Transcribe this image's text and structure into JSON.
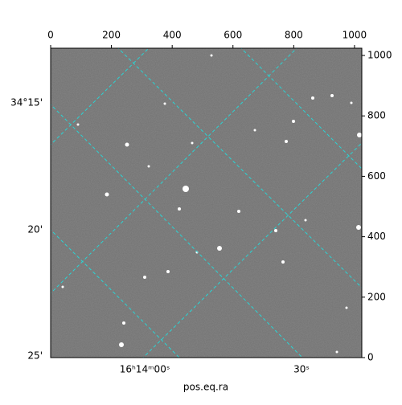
{
  "chart_data": {
    "type": "image",
    "xlabel": "pos.eq.ra",
    "xlim": [
      0,
      1024
    ],
    "ylim": [
      0,
      1024
    ],
    "xticks": [
      0,
      200,
      400,
      600,
      800,
      1000
    ],
    "yticks": [
      0,
      200,
      400,
      600,
      800,
      1000
    ],
    "dec_tick_labels": [
      "34°15'",
      "20'",
      "25'"
    ],
    "ra_tick_labels": [
      "16ʰ14ᵐ00ˢ",
      "30ˢ"
    ]
  }
}
